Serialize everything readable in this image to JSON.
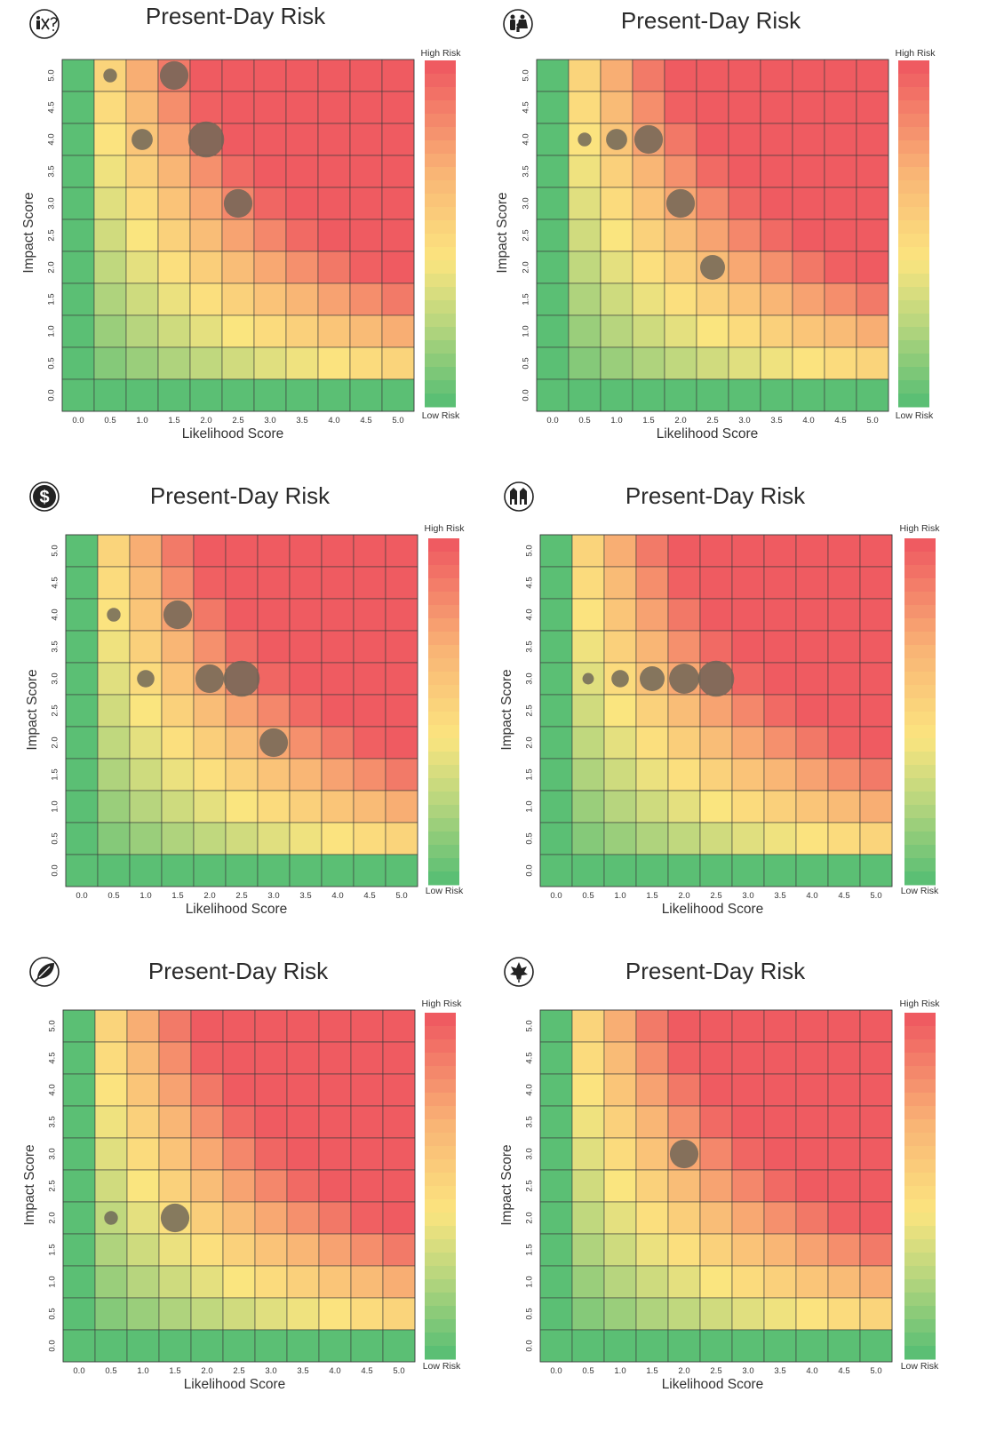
{
  "colorbar": {
    "high_label": "High Risk",
    "low_label": "Low Risk"
  },
  "palette": {
    "green": "#5bbf74",
    "light_green": "#b5d57e",
    "yellow": "#fbe57f",
    "orange": "#f9b575",
    "red": "#ef5b61",
    "bubble": "#6b6457"
  },
  "chart_data": [
    {
      "type": "scatter",
      "icon": "people-question-icon",
      "title": "Present-Day Risk",
      "xlabel": "Likelihood Score",
      "ylabel": "Impact Score",
      "x_ticks": [
        "0.0",
        "0.5",
        "1.0",
        "1.5",
        "2.0",
        "2.5",
        "3.0",
        "3.5",
        "4.0",
        "4.5",
        "5.0"
      ],
      "y_ticks": [
        "0.0",
        "0.5",
        "1.0",
        "1.5",
        "2.0",
        "2.5",
        "3.0",
        "3.5",
        "4.0",
        "4.5",
        "5.0"
      ],
      "xlim": [
        0,
        5
      ],
      "ylim": [
        0,
        5
      ],
      "points": [
        {
          "x": 0.5,
          "y": 5.0,
          "size": 1
        },
        {
          "x": 1.5,
          "y": 5.0,
          "size": 3
        },
        {
          "x": 1.0,
          "y": 4.0,
          "size": 2
        },
        {
          "x": 2.0,
          "y": 4.0,
          "size": 4
        },
        {
          "x": 2.5,
          "y": 3.0,
          "size": 3
        }
      ]
    },
    {
      "type": "scatter",
      "icon": "family-icon",
      "title": "Present-Day Risk",
      "xlabel": "Likelihood Score",
      "ylabel": "Impact Score",
      "x_ticks": [
        "0.0",
        "0.5",
        "1.0",
        "1.5",
        "2.0",
        "2.5",
        "3.0",
        "3.5",
        "4.0",
        "4.5",
        "5.0"
      ],
      "y_ticks": [
        "0.0",
        "0.5",
        "1.0",
        "1.5",
        "2.0",
        "2.5",
        "3.0",
        "3.5",
        "4.0",
        "4.5",
        "5.0"
      ],
      "xlim": [
        0,
        5
      ],
      "ylim": [
        0,
        5
      ],
      "points": [
        {
          "x": 0.5,
          "y": 4.0,
          "size": 1
        },
        {
          "x": 1.0,
          "y": 4.0,
          "size": 2
        },
        {
          "x": 1.5,
          "y": 4.0,
          "size": 3
        },
        {
          "x": 2.0,
          "y": 3.0,
          "size": 3
        },
        {
          "x": 2.5,
          "y": 2.0,
          "size": 2.5
        }
      ]
    },
    {
      "type": "scatter",
      "icon": "dollar-icon",
      "title": "Present-Day Risk",
      "xlabel": "Likelihood Score",
      "ylabel": "Impact Score",
      "x_ticks": [
        "0.0",
        "0.5",
        "1.0",
        "1.5",
        "2.0",
        "2.5",
        "3.0",
        "3.5",
        "4.0",
        "4.5",
        "5.0"
      ],
      "y_ticks": [
        "0.0",
        "0.5",
        "1.0",
        "1.5",
        "2.0",
        "2.5",
        "3.0",
        "3.5",
        "4.0",
        "4.5",
        "5.0"
      ],
      "xlim": [
        0,
        5
      ],
      "ylim": [
        0,
        5
      ],
      "points": [
        {
          "x": 0.5,
          "y": 4.0,
          "size": 1
        },
        {
          "x": 1.5,
          "y": 4.0,
          "size": 3
        },
        {
          "x": 1.0,
          "y": 3.0,
          "size": 1.5
        },
        {
          "x": 2.0,
          "y": 3.0,
          "size": 3
        },
        {
          "x": 2.5,
          "y": 3.0,
          "size": 4
        },
        {
          "x": 3.0,
          "y": 2.0,
          "size": 3
        }
      ]
    },
    {
      "type": "scatter",
      "icon": "buildings-icon",
      "title": "Present-Day Risk",
      "xlabel": "Likelihood Score",
      "ylabel": "Impact Score",
      "x_ticks": [
        "0.0",
        "0.5",
        "1.0",
        "1.5",
        "2.0",
        "2.5",
        "3.0",
        "3.5",
        "4.0",
        "4.5",
        "5.0"
      ],
      "y_ticks": [
        "0.0",
        "0.5",
        "1.0",
        "1.5",
        "2.0",
        "2.5",
        "3.0",
        "3.5",
        "4.0",
        "4.5",
        "5.0"
      ],
      "xlim": [
        0,
        5
      ],
      "ylim": [
        0,
        5
      ],
      "points": [
        {
          "x": 0.5,
          "y": 3.0,
          "size": 0.7
        },
        {
          "x": 1.0,
          "y": 3.0,
          "size": 1.5
        },
        {
          "x": 1.5,
          "y": 3.0,
          "size": 2.5
        },
        {
          "x": 2.0,
          "y": 3.0,
          "size": 3.2
        },
        {
          "x": 2.5,
          "y": 3.0,
          "size": 4
        }
      ]
    },
    {
      "type": "scatter",
      "icon": "leaf-icon",
      "title": "Present-Day Risk",
      "xlabel": "Likelihood Score",
      "ylabel": "Impact Score",
      "x_ticks": [
        "0.0",
        "0.5",
        "1.0",
        "1.5",
        "2.0",
        "2.5",
        "3.0",
        "3.5",
        "4.0",
        "4.5",
        "5.0"
      ],
      "y_ticks": [
        "0.0",
        "0.5",
        "1.0",
        "1.5",
        "2.0",
        "2.5",
        "3.0",
        "3.5",
        "4.0",
        "4.5",
        "5.0"
      ],
      "xlim": [
        0,
        5
      ],
      "ylim": [
        0,
        5
      ],
      "points": [
        {
          "x": 0.5,
          "y": 2.0,
          "size": 1
        },
        {
          "x": 1.5,
          "y": 2.0,
          "size": 3
        }
      ]
    },
    {
      "type": "scatter",
      "icon": "maple-leaf-icon",
      "title": "Present-Day Risk",
      "xlabel": "Likelihood Score",
      "ylabel": "Impact Score",
      "x_ticks": [
        "0.0",
        "0.5",
        "1.0",
        "1.5",
        "2.0",
        "2.5",
        "3.0",
        "3.5",
        "4.0",
        "4.5",
        "5.0"
      ],
      "y_ticks": [
        "0.0",
        "0.5",
        "1.0",
        "1.5",
        "2.0",
        "2.5",
        "3.0",
        "3.5",
        "4.0",
        "4.5",
        "5.0"
      ],
      "xlim": [
        0,
        5
      ],
      "ylim": [
        0,
        5
      ],
      "points": [
        {
          "x": 2.0,
          "y": 3.0,
          "size": 3
        }
      ]
    }
  ]
}
